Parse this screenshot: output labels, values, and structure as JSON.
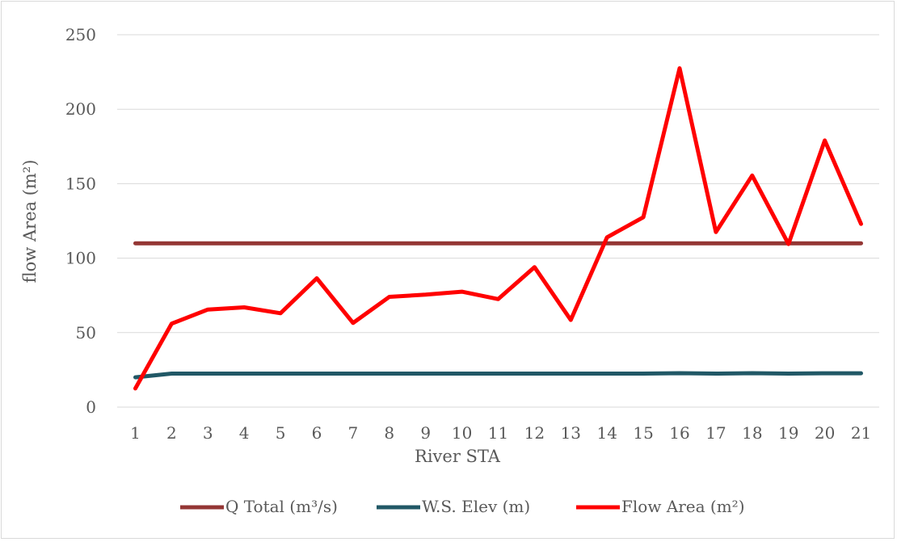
{
  "chart_data": {
    "type": "line",
    "xlabel": "River STA",
    "ylabel": "flow Area (m²)",
    "ylim": [
      0,
      250
    ],
    "y_ticks": [
      0,
      50,
      100,
      150,
      200,
      250
    ],
    "grid": true,
    "legend_position": "bottom",
    "categories": [
      "1",
      "2",
      "3",
      "4",
      "5",
      "6",
      "7",
      "8",
      "9",
      "10",
      "11",
      "12",
      "13",
      "14",
      "15",
      "16",
      "17",
      "18",
      "19",
      "20",
      "21"
    ],
    "series": [
      {
        "name": "Q Total (m³/s)",
        "color": "#943634",
        "values": [
          110,
          110,
          110,
          110,
          110,
          110,
          110,
          110,
          110,
          110,
          110,
          110,
          110,
          110,
          110,
          110,
          110,
          110,
          110,
          110,
          110
        ]
      },
      {
        "name": "W.S. Elev (m)",
        "color": "#215866",
        "values": [
          20,
          22.5,
          22.5,
          22.5,
          22.5,
          22.5,
          22.5,
          22.5,
          22.5,
          22.5,
          22.5,
          22.5,
          22.5,
          22.5,
          22.5,
          22.8,
          22.5,
          22.8,
          22.5,
          22.7,
          22.7
        ]
      },
      {
        "name": "Flow Area (m²)",
        "color": "#ff0000",
        "values": [
          12.5,
          56,
          65.5,
          67,
          63,
          86.5,
          56.5,
          74,
          75.5,
          77.5,
          72.5,
          94,
          58.5,
          114,
          127.5,
          227.5,
          117.5,
          155.5,
          109.5,
          179,
          123
        ]
      }
    ]
  }
}
